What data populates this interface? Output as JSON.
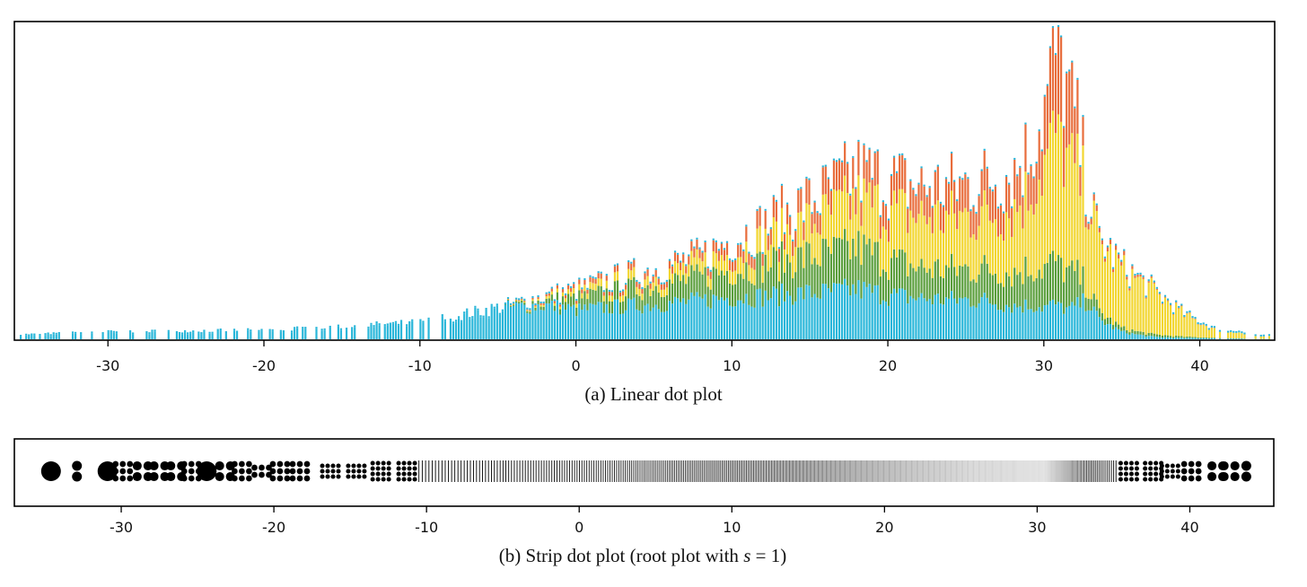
{
  "colors": {
    "frame": "#000000",
    "series": [
      "#29b6d9",
      "#5a9e3c",
      "#f2d630",
      "#e86d3c"
    ],
    "strip_dot": "#000000"
  },
  "chart_data": [
    {
      "type": "bar",
      "subtype": "linear-dot-plot",
      "caption": "(a)  Linear dot plot",
      "xlim": [
        -36,
        44.8
      ],
      "xticks": [
        -30,
        -20,
        -10,
        0,
        10,
        20,
        30,
        40
      ],
      "xtick_labels": [
        "-30",
        "-20",
        "-10",
        "0",
        "10",
        "20",
        "30",
        "40"
      ],
      "ylim": [
        0,
        1
      ],
      "y_unit": "relative stack height (fraction of tallest column)",
      "grid": false,
      "legend": "none",
      "stack_series_colors": [
        "#29b6d9",
        "#5a9e3c",
        "#f2d630",
        "#e86d3c"
      ],
      "profile_x": [
        -36,
        -30,
        -20,
        -10,
        -8,
        -5,
        -2,
        0,
        2,
        5,
        8,
        10,
        12,
        14,
        16,
        18,
        20,
        22,
        24,
        26,
        28,
        29,
        30,
        30.8,
        31.5,
        32,
        32.8,
        33.5,
        35,
        37,
        39,
        41,
        43,
        44.5
      ],
      "profile_height": [
        0.01,
        0.02,
        0.025,
        0.05,
        0.07,
        0.1,
        0.14,
        0.16,
        0.19,
        0.23,
        0.27,
        0.33,
        0.37,
        0.43,
        0.48,
        0.55,
        0.52,
        0.5,
        0.5,
        0.52,
        0.55,
        0.62,
        0.76,
        0.97,
        0.8,
        0.72,
        0.48,
        0.33,
        0.24,
        0.16,
        0.08,
        0.03,
        0.015,
        0.01
      ],
      "profile_share_cyan": [
        1,
        1,
        1,
        1,
        1,
        1,
        0.8,
        0.6,
        0.55,
        0.5,
        0.47,
        0.42,
        0.38,
        0.35,
        0.32,
        0.3,
        0.28,
        0.27,
        0.26,
        0.25,
        0.2,
        0.18,
        0.14,
        0.12,
        0.12,
        0.15,
        0.25,
        0.2,
        0.1,
        0.05,
        0.05,
        0.1,
        0.1,
        0.1
      ],
      "profile_share_green": [
        0,
        0,
        0,
        0,
        0,
        0,
        0.1,
        0.22,
        0.25,
        0.27,
        0.28,
        0.28,
        0.28,
        0.27,
        0.26,
        0.25,
        0.22,
        0.2,
        0.2,
        0.2,
        0.2,
        0.2,
        0.17,
        0.15,
        0.15,
        0.15,
        0.1,
        0.08,
        0.05,
        0.05,
        0.05,
        0.05,
        0.05,
        0.05
      ],
      "profile_share_yellow": [
        0,
        0,
        0,
        0,
        0,
        0,
        0.05,
        0.1,
        0.12,
        0.13,
        0.15,
        0.17,
        0.2,
        0.23,
        0.26,
        0.28,
        0.32,
        0.34,
        0.34,
        0.34,
        0.38,
        0.4,
        0.45,
        0.45,
        0.45,
        0.47,
        0.6,
        0.68,
        0.8,
        0.88,
        0.88,
        0.82,
        0.82,
        0.82
      ]
    },
    {
      "type": "scatter",
      "subtype": "strip-dot-plot",
      "caption_prefix": "(b)  Strip dot plot (root plot with ",
      "caption_variable": "s",
      "caption_suffix": " = 1)",
      "xlim": [
        -37,
        45.5
      ],
      "xticks": [
        -30,
        -20,
        -10,
        0,
        10,
        20,
        30,
        40
      ],
      "xtick_labels": [
        "-30",
        "-20",
        "-10",
        "0",
        "10",
        "20",
        "30",
        "40"
      ],
      "grid": false,
      "legend": "none",
      "sparse_groups": [
        {
          "x": -34.6,
          "count": 1
        },
        {
          "x": -32.9,
          "count": 2
        },
        {
          "x": -30.9,
          "count": 1
        },
        {
          "x": -29.9,
          "count": 9
        },
        {
          "x": -28.6,
          "count": 4
        },
        {
          "x": -27.5,
          "count": 4
        },
        {
          "x": -26.4,
          "count": 4
        },
        {
          "x": -25.4,
          "count": 9
        },
        {
          "x": -24.4,
          "count": 1
        },
        {
          "x": -23.2,
          "count": 4
        },
        {
          "x": -22.1,
          "count": 9
        },
        {
          "x": -20.8,
          "count": 6
        },
        {
          "x": -19.6,
          "count": 9
        },
        {
          "x": -18.3,
          "count": 9
        },
        {
          "x": -16.3,
          "count": 12
        },
        {
          "x": -14.6,
          "count": 12
        },
        {
          "x": -13.0,
          "count": 16
        },
        {
          "x": -11.3,
          "count": 16
        },
        {
          "x": 36.0,
          "count": 16
        },
        {
          "x": 37.6,
          "count": 16
        },
        {
          "x": 38.7,
          "count": 12
        },
        {
          "x": 40.1,
          "count": 9
        },
        {
          "x": 41.8,
          "count": 4
        },
        {
          "x": 42.6,
          "count": 4
        },
        {
          "x": 43.7,
          "count": 2
        }
      ],
      "dense_profile_x": [
        -10.5,
        -7,
        -4,
        0,
        3,
        6,
        10,
        14,
        18,
        22,
        26,
        29,
        30.5,
        32,
        33.5,
        35.2
      ],
      "dense_profile_spacing": [
        0.22,
        0.2,
        0.18,
        0.16,
        0.14,
        0.12,
        0.1,
        0.08,
        0.07,
        0.07,
        0.07,
        0.06,
        0.05,
        0.06,
        0.1,
        0.16
      ],
      "dense_profile_darkness": [
        1,
        1,
        1,
        0.95,
        0.9,
        0.85,
        0.75,
        0.6,
        0.42,
        0.3,
        0.2,
        0.15,
        0.12,
        0.35,
        0.8,
        1
      ]
    }
  ]
}
